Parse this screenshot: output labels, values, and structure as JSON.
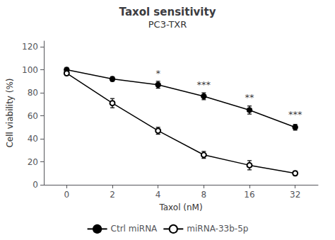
{
  "chart_data": {
    "type": "line",
    "title": "Taxol sensitivity",
    "subtitle": "PC3-TXR",
    "x_label": "Taxol (nM)",
    "y_label": "Cell viability (%)",
    "categories": [
      "0",
      "2",
      "4",
      "8",
      "16",
      "32"
    ],
    "series": [
      {
        "name": "Ctrl miRNA",
        "color": "#000000",
        "marker": "circle",
        "values": [
          100,
          92,
          87,
          77,
          65,
          50
        ],
        "errors": [
          2,
          2.0,
          3,
          3,
          3.5,
          2.5
        ]
      },
      {
        "name": "miRNA-33b-5p",
        "color": "#000000",
        "marker": "emptyCircle",
        "values": [
          97,
          71,
          47,
          26,
          17,
          10
        ],
        "errors": [
          2,
          4,
          3,
          3,
          4,
          2
        ]
      }
    ],
    "annotations": [
      {
        "x": "4",
        "y": 93,
        "text": "*"
      },
      {
        "x": "8",
        "y": 83,
        "text": "***"
      },
      {
        "x": "16",
        "y": 72,
        "text": "**"
      },
      {
        "x": "32",
        "y": 57,
        "text": "***"
      }
    ],
    "ylim": [
      0,
      125
    ],
    "yticks": [
      0,
      20,
      40,
      60,
      80,
      100,
      120
    ],
    "grid": false,
    "legend": "bottom"
  }
}
